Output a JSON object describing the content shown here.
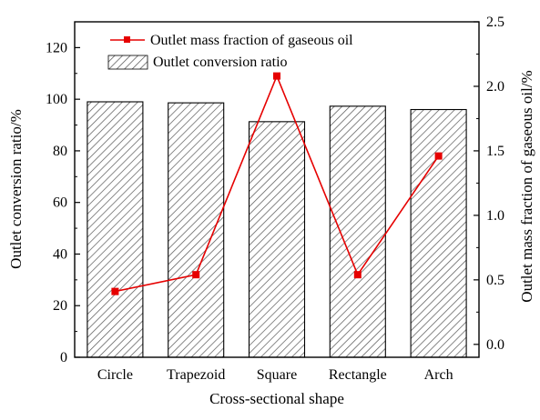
{
  "chart_data": {
    "type": "bar+line",
    "categories": [
      "Circle",
      "Trapezoid",
      "Square",
      "Rectangle",
      "Arch"
    ],
    "xlabel": "Cross-sectional shape",
    "left_axis": {
      "label": "Outlet conversion ratio/%",
      "range": [
        0,
        130
      ],
      "ticks": [
        "0",
        "20",
        "40",
        "60",
        "80",
        "100",
        "120"
      ]
    },
    "right_axis": {
      "label": "Outlet mass fraction of gaseous oil/%",
      "range": [
        -0.1,
        2.5
      ],
      "ticks": [
        "0.0",
        "0.5",
        "1.0",
        "1.5",
        "2.0",
        "2.5"
      ]
    },
    "series": [
      {
        "name": "Outlet conversion ratio",
        "type": "bar",
        "axis": "left",
        "pattern": "diagonal-hatch",
        "values": [
          99,
          98.6,
          91.3,
          97.3,
          96
        ]
      },
      {
        "name": "Outlet mass fraction of gaseous oil",
        "type": "line",
        "axis": "right",
        "color": "#e60000",
        "marker": "square",
        "values": [
          0.41,
          0.54,
          2.08,
          0.54,
          1.46
        ]
      }
    ],
    "legend_placement": "top-left",
    "grid": false
  }
}
